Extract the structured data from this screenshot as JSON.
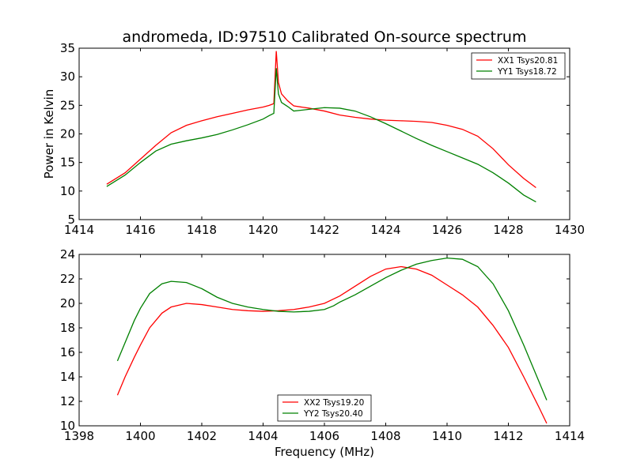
{
  "figure": {
    "title": "andromeda, ID:97510 Calibrated On-source spectrum",
    "xlabel": "Frequency (MHz)"
  },
  "chart_data": [
    {
      "type": "line",
      "title": "andromeda, ID:97510 Calibrated On-source spectrum",
      "xlabel": "",
      "ylabel": "Power in Kelvin",
      "xlim": [
        1414,
        1430
      ],
      "ylim": [
        5,
        35
      ],
      "xticks": [
        1414,
        1416,
        1418,
        1420,
        1422,
        1424,
        1426,
        1428,
        1430
      ],
      "yticks": [
        5,
        10,
        15,
        20,
        25,
        30,
        35
      ],
      "grid": false,
      "legend": "top-right",
      "series": [
        {
          "name": "XX1 Tsys20.81",
          "color": "#ff0000",
          "points": [
            [
              1414.9,
              11.2
            ],
            [
              1415.5,
              13.2
            ],
            [
              1416.0,
              15.6
            ],
            [
              1416.5,
              18.0
            ],
            [
              1417.0,
              20.2
            ],
            [
              1417.5,
              21.5
            ],
            [
              1418.0,
              22.3
            ],
            [
              1418.5,
              23.0
            ],
            [
              1419.0,
              23.6
            ],
            [
              1419.5,
              24.2
            ],
            [
              1420.0,
              24.7
            ],
            [
              1420.2,
              25.0
            ],
            [
              1420.35,
              25.3
            ],
            [
              1420.43,
              34.5
            ],
            [
              1420.5,
              29.0
            ],
            [
              1420.6,
              27.0
            ],
            [
              1420.8,
              25.8
            ],
            [
              1421.0,
              24.9
            ],
            [
              1421.5,
              24.5
            ],
            [
              1422.0,
              24.0
            ],
            [
              1422.5,
              23.3
            ],
            [
              1423.0,
              22.9
            ],
            [
              1423.5,
              22.6
            ],
            [
              1424.0,
              22.4
            ],
            [
              1424.5,
              22.3
            ],
            [
              1425.0,
              22.2
            ],
            [
              1425.5,
              22.0
            ],
            [
              1426.0,
              21.5
            ],
            [
              1426.5,
              20.8
            ],
            [
              1427.0,
              19.6
            ],
            [
              1427.5,
              17.4
            ],
            [
              1428.0,
              14.6
            ],
            [
              1428.5,
              12.2
            ],
            [
              1428.9,
              10.6
            ]
          ]
        },
        {
          "name": "YY1 Tsys18.72",
          "color": "#008000",
          "points": [
            [
              1414.9,
              10.8
            ],
            [
              1415.5,
              12.8
            ],
            [
              1416.0,
              15.0
            ],
            [
              1416.5,
              17.0
            ],
            [
              1417.0,
              18.2
            ],
            [
              1417.5,
              18.8
            ],
            [
              1418.0,
              19.3
            ],
            [
              1418.5,
              19.9
            ],
            [
              1419.0,
              20.7
            ],
            [
              1419.5,
              21.6
            ],
            [
              1420.0,
              22.6
            ],
            [
              1420.2,
              23.2
            ],
            [
              1420.35,
              23.6
            ],
            [
              1420.43,
              31.5
            ],
            [
              1420.5,
              27.0
            ],
            [
              1420.6,
              25.5
            ],
            [
              1420.8,
              24.8
            ],
            [
              1421.0,
              24.0
            ],
            [
              1421.5,
              24.3
            ],
            [
              1422.0,
              24.6
            ],
            [
              1422.5,
              24.5
            ],
            [
              1423.0,
              24.0
            ],
            [
              1423.5,
              23.0
            ],
            [
              1424.0,
              21.8
            ],
            [
              1424.5,
              20.5
            ],
            [
              1425.0,
              19.2
            ],
            [
              1425.5,
              18.0
            ],
            [
              1426.0,
              16.9
            ],
            [
              1426.5,
              15.8
            ],
            [
              1427.0,
              14.7
            ],
            [
              1427.5,
              13.2
            ],
            [
              1428.0,
              11.4
            ],
            [
              1428.5,
              9.3
            ],
            [
              1428.9,
              8.1
            ]
          ]
        }
      ]
    },
    {
      "type": "line",
      "title": "",
      "xlabel": "Frequency (MHz)",
      "ylabel": "",
      "xlim": [
        1398,
        1414
      ],
      "ylim": [
        10,
        24
      ],
      "xticks": [
        1398,
        1400,
        1402,
        1404,
        1406,
        1408,
        1410,
        1412,
        1414
      ],
      "yticks": [
        10,
        12,
        14,
        16,
        18,
        20,
        22,
        24
      ],
      "grid": false,
      "legend": "bottom-center",
      "series": [
        {
          "name": "XX2 Tsys19.20",
          "color": "#ff0000",
          "points": [
            [
              1399.25,
              12.5
            ],
            [
              1399.5,
              14.0
            ],
            [
              1399.8,
              15.6
            ],
            [
              1400.0,
              16.6
            ],
            [
              1400.3,
              18.0
            ],
            [
              1400.7,
              19.2
            ],
            [
              1401.0,
              19.7
            ],
            [
              1401.5,
              20.0
            ],
            [
              1402.0,
              19.9
            ],
            [
              1402.5,
              19.7
            ],
            [
              1403.0,
              19.5
            ],
            [
              1403.5,
              19.4
            ],
            [
              1404.0,
              19.35
            ],
            [
              1404.5,
              19.4
            ],
            [
              1405.0,
              19.5
            ],
            [
              1405.5,
              19.7
            ],
            [
              1406.0,
              20.0
            ],
            [
              1406.5,
              20.6
            ],
            [
              1407.0,
              21.4
            ],
            [
              1407.5,
              22.2
            ],
            [
              1408.0,
              22.8
            ],
            [
              1408.5,
              23.0
            ],
            [
              1409.0,
              22.8
            ],
            [
              1409.5,
              22.3
            ],
            [
              1410.0,
              21.5
            ],
            [
              1410.5,
              20.7
            ],
            [
              1411.0,
              19.7
            ],
            [
              1411.5,
              18.2
            ],
            [
              1412.0,
              16.4
            ],
            [
              1412.5,
              14.0
            ],
            [
              1413.0,
              11.5
            ],
            [
              1413.25,
              10.2
            ]
          ]
        },
        {
          "name": "YY2 Tsys20.40",
          "color": "#008000",
          "points": [
            [
              1399.25,
              15.3
            ],
            [
              1399.5,
              16.8
            ],
            [
              1399.8,
              18.6
            ],
            [
              1400.0,
              19.6
            ],
            [
              1400.3,
              20.8
            ],
            [
              1400.7,
              21.6
            ],
            [
              1401.0,
              21.8
            ],
            [
              1401.5,
              21.7
            ],
            [
              1402.0,
              21.2
            ],
            [
              1402.5,
              20.5
            ],
            [
              1403.0,
              20.0
            ],
            [
              1403.5,
              19.7
            ],
            [
              1404.0,
              19.5
            ],
            [
              1404.5,
              19.35
            ],
            [
              1405.0,
              19.3
            ],
            [
              1405.5,
              19.35
            ],
            [
              1406.0,
              19.5
            ],
            [
              1406.3,
              19.8
            ],
            [
              1406.5,
              20.1
            ],
            [
              1407.0,
              20.7
            ],
            [
              1407.5,
              21.4
            ],
            [
              1408.0,
              22.1
            ],
            [
              1408.5,
              22.7
            ],
            [
              1409.0,
              23.2
            ],
            [
              1409.5,
              23.5
            ],
            [
              1410.0,
              23.7
            ],
            [
              1410.5,
              23.6
            ],
            [
              1411.0,
              23.0
            ],
            [
              1411.5,
              21.6
            ],
            [
              1412.0,
              19.4
            ],
            [
              1412.5,
              16.6
            ],
            [
              1413.0,
              13.6
            ],
            [
              1413.25,
              12.1
            ]
          ]
        }
      ]
    }
  ]
}
